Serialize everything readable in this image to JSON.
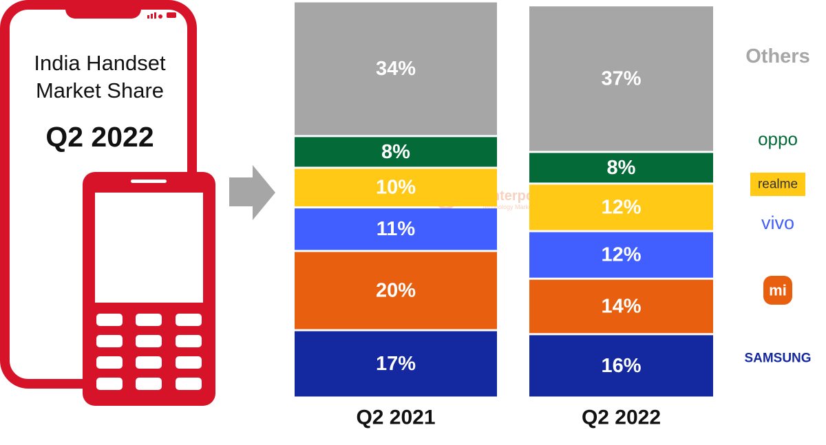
{
  "chart_data": {
    "type": "bar",
    "stacked": true,
    "title": "India Handset Market Share",
    "subtitle": "Q2 2022",
    "watermark": "Counterpoint",
    "watermark_subtitle": "Technology Market Research",
    "categories": [
      "Q2 2021",
      "Q2 2022"
    ],
    "ylim": [
      0,
      100
    ],
    "series": [
      {
        "name": "SAMSUNG",
        "color": "#1428a0",
        "values": [
          17,
          16
        ],
        "value_labels": [
          "17%",
          "16%"
        ]
      },
      {
        "name": "mi",
        "color": "#e8600f",
        "values": [
          20,
          14
        ],
        "value_labels": [
          "20%",
          "14%"
        ]
      },
      {
        "name": "vivo",
        "color": "#415fff",
        "values": [
          11,
          12
        ],
        "value_labels": [
          "11%",
          "12%"
        ]
      },
      {
        "name": "realme",
        "color": "#ffc915",
        "values": [
          10,
          12
        ],
        "value_labels": [
          "10%",
          "12%"
        ]
      },
      {
        "name": "oppo",
        "color": "#046a38",
        "values": [
          8,
          8
        ],
        "value_labels": [
          "8%",
          "8%"
        ]
      },
      {
        "name": "Others",
        "color": "#a6a6a6",
        "values": [
          34,
          37
        ],
        "value_labels": [
          "34%",
          "37%"
        ]
      }
    ]
  }
}
